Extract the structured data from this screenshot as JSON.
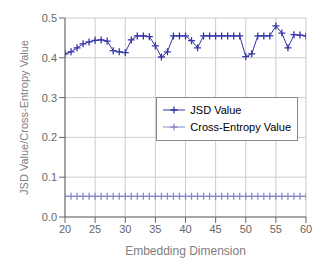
{
  "chart_data": {
    "type": "line",
    "xlabel": "Embedding Dimension",
    "ylabel": "JSD Value/Cross-Entropy Value",
    "x": [
      20,
      21,
      22,
      23,
      24,
      25,
      26,
      27,
      28,
      29,
      30,
      31,
      32,
      33,
      34,
      35,
      36,
      37,
      38,
      39,
      40,
      41,
      42,
      43,
      44,
      45,
      46,
      47,
      48,
      49,
      50,
      51,
      52,
      53,
      54,
      55,
      56,
      57,
      58,
      59,
      60
    ],
    "series": [
      {
        "name": "JSD Value",
        "color": "#3333aa",
        "marker": "+",
        "values": [
          0.41,
          0.415,
          0.425,
          0.435,
          0.44,
          0.444,
          0.445,
          0.442,
          0.418,
          0.415,
          0.413,
          0.445,
          0.455,
          0.455,
          0.453,
          0.43,
          0.402,
          0.415,
          0.455,
          0.455,
          0.455,
          0.443,
          0.425,
          0.455,
          0.455,
          0.455,
          0.455,
          0.455,
          0.455,
          0.455,
          0.403,
          0.41,
          0.455,
          0.455,
          0.455,
          0.48,
          0.462,
          0.425,
          0.458,
          0.457,
          0.455
        ]
      },
      {
        "name": "Cross-Entropy Value",
        "color": "#8888cc",
        "marker": "+",
        "values": [
          0.052,
          0.052,
          0.052,
          0.052,
          0.052,
          0.052,
          0.052,
          0.052,
          0.052,
          0.052,
          0.052,
          0.052,
          0.052,
          0.052,
          0.052,
          0.052,
          0.052,
          0.052,
          0.052,
          0.052,
          0.052,
          0.052,
          0.052,
          0.052,
          0.052,
          0.052,
          0.052,
          0.052,
          0.052,
          0.052,
          0.052,
          0.052,
          0.052,
          0.052,
          0.052,
          0.052,
          0.052,
          0.052,
          0.052,
          0.052,
          0.052
        ]
      }
    ],
    "xlim": [
      20,
      60
    ],
    "ylim": [
      0,
      0.5
    ],
    "xticks": [
      20,
      25,
      30,
      35,
      40,
      45,
      50,
      55,
      60
    ],
    "yticks": [
      {
        "value": 0,
        "label": "0.0"
      },
      0.1,
      0.2,
      0.3,
      0.4,
      0.5
    ],
    "grid": true,
    "legend": "center right"
  }
}
